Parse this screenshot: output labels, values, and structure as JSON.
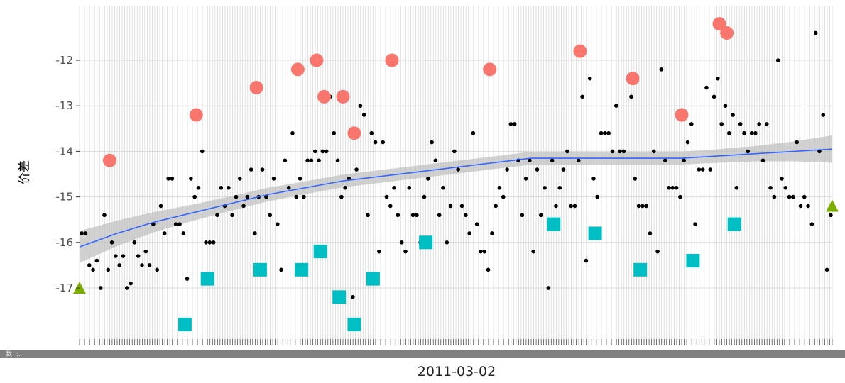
{
  "chart_data": {
    "type": "scatter",
    "title": "",
    "xlabel": "2011-03-02",
    "ylabel": "价差",
    "bottom_bar_text": "数: :.",
    "ylim": [
      -18.2,
      -10.9
    ],
    "y_ticks": [
      -12,
      -13,
      -14,
      -15,
      -16,
      -17
    ],
    "y_tick_labels": [
      "-12",
      "-13",
      "-14",
      "-15",
      "-16",
      "-17"
    ],
    "x_range": [
      0,
      100
    ],
    "grid": true,
    "legend": "none",
    "colors": {
      "panel": "#ffffff",
      "gridline": "#d9d9d9",
      "points": "#000000",
      "high": "#f8766d",
      "low": "#00bfc4",
      "edge": "#7cae00",
      "smooth": "#3366ff",
      "band": "#bdbdbd",
      "bar": "#808080"
    },
    "series": [
      {
        "kind": "small-points",
        "points": [
          [
            0.3,
            -15.8
          ],
          [
            0.8,
            -15.8
          ],
          [
            1.3,
            -16.5
          ],
          [
            1.8,
            -16.6
          ],
          [
            2.3,
            -16.4
          ],
          [
            2.8,
            -17.0
          ],
          [
            3.3,
            -15.4
          ],
          [
            3.8,
            -16.6
          ],
          [
            4.3,
            -16.0
          ],
          [
            4.8,
            -16.3
          ],
          [
            5.3,
            -16.5
          ],
          [
            5.8,
            -16.3
          ],
          [
            6.3,
            -17.0
          ],
          [
            6.8,
            -16.9
          ],
          [
            7.3,
            -16.0
          ],
          [
            7.8,
            -16.3
          ],
          [
            8.3,
            -16.5
          ],
          [
            8.8,
            -16.2
          ],
          [
            9.3,
            -16.5
          ],
          [
            9.8,
            -15.6
          ],
          [
            10.3,
            -16.6
          ],
          [
            10.8,
            -15.2
          ],
          [
            11.3,
            -15.8
          ],
          [
            11.8,
            -14.6
          ],
          [
            12.3,
            -14.6
          ],
          [
            12.8,
            -15.6
          ],
          [
            13.3,
            -15.6
          ],
          [
            13.8,
            -15.8
          ],
          [
            14.3,
            -16.8
          ],
          [
            14.8,
            -14.6
          ],
          [
            15.3,
            -15.0
          ],
          [
            15.8,
            -14.8
          ],
          [
            16.3,
            -14.0
          ],
          [
            16.8,
            -16.0
          ],
          [
            17.3,
            -16.0
          ],
          [
            17.8,
            -16.0
          ],
          [
            18.3,
            -15.4
          ],
          [
            18.8,
            -14.8
          ],
          [
            19.3,
            -15.2
          ],
          [
            19.8,
            -14.8
          ],
          [
            20.3,
            -15.4
          ],
          [
            20.8,
            -15.0
          ],
          [
            21.3,
            -14.6
          ],
          [
            21.8,
            -15.2
          ],
          [
            22.3,
            -15.0
          ],
          [
            22.8,
            -14.4
          ],
          [
            23.3,
            -15.8
          ],
          [
            23.8,
            -15.0
          ],
          [
            24.3,
            -14.4
          ],
          [
            24.8,
            -15.0
          ],
          [
            25.3,
            -15.4
          ],
          [
            25.8,
            -14.6
          ],
          [
            26.3,
            -15.6
          ],
          [
            26.8,
            -16.6
          ],
          [
            27.3,
            -14.2
          ],
          [
            27.8,
            -14.8
          ],
          [
            28.3,
            -13.6
          ],
          [
            28.8,
            -15.0
          ],
          [
            29.3,
            -14.6
          ],
          [
            29.8,
            -15.0
          ],
          [
            30.3,
            -14.2
          ],
          [
            30.8,
            -14.2
          ],
          [
            31.3,
            -14.0
          ],
          [
            31.8,
            -14.2
          ],
          [
            32.3,
            -14.0
          ],
          [
            32.8,
            -14.0
          ],
          [
            33.3,
            -12.8
          ],
          [
            33.8,
            -13.6
          ],
          [
            34.3,
            -14.2
          ],
          [
            34.8,
            -15.0
          ],
          [
            35.3,
            -14.8
          ],
          [
            35.8,
            -14.6
          ],
          [
            36.3,
            -17.2
          ],
          [
            36.8,
            -14.4
          ],
          [
            37.3,
            -13.0
          ],
          [
            37.8,
            -13.2
          ],
          [
            38.3,
            -15.4
          ],
          [
            38.8,
            -13.6
          ],
          [
            39.3,
            -13.8
          ],
          [
            39.8,
            -16.2
          ],
          [
            40.3,
            -13.8
          ],
          [
            40.8,
            -15.0
          ],
          [
            41.3,
            -15.2
          ],
          [
            41.8,
            -14.8
          ],
          [
            42.3,
            -15.4
          ],
          [
            42.8,
            -16.0
          ],
          [
            43.3,
            -16.2
          ],
          [
            43.8,
            -14.8
          ],
          [
            44.3,
            -15.4
          ],
          [
            44.8,
            -15.4
          ],
          [
            45.3,
            -16.0
          ],
          [
            45.8,
            -15.0
          ],
          [
            46.3,
            -14.6
          ],
          [
            46.8,
            -13.8
          ],
          [
            47.3,
            -14.2
          ],
          [
            47.8,
            -15.4
          ],
          [
            48.3,
            -14.8
          ],
          [
            48.8,
            -16.0
          ],
          [
            49.3,
            -15.2
          ],
          [
            49.8,
            -14.0
          ],
          [
            50.3,
            -14.4
          ],
          [
            50.8,
            -15.2
          ],
          [
            51.3,
            -15.4
          ],
          [
            51.8,
            -15.8
          ],
          [
            52.3,
            -13.6
          ],
          [
            52.8,
            -15.6
          ],
          [
            53.3,
            -16.2
          ],
          [
            53.8,
            -16.2
          ],
          [
            54.3,
            -16.6
          ],
          [
            54.8,
            -15.8
          ],
          [
            55.3,
            -15.2
          ],
          [
            55.8,
            -14.8
          ],
          [
            56.3,
            -15.0
          ],
          [
            56.8,
            -14.4
          ],
          [
            57.3,
            -13.4
          ],
          [
            57.8,
            -13.4
          ],
          [
            58.3,
            -14.2
          ],
          [
            58.8,
            -15.4
          ],
          [
            59.3,
            -14.6
          ],
          [
            59.8,
            -14.2
          ],
          [
            60.3,
            -16.2
          ],
          [
            60.8,
            -14.4
          ],
          [
            61.3,
            -15.4
          ],
          [
            61.8,
            -14.8
          ],
          [
            62.3,
            -17.0
          ],
          [
            62.8,
            -14.2
          ],
          [
            63.3,
            -15.2
          ],
          [
            63.8,
            -14.8
          ],
          [
            64.3,
            -14.4
          ],
          [
            64.8,
            -14.0
          ],
          [
            65.3,
            -15.2
          ],
          [
            65.8,
            -15.2
          ],
          [
            66.3,
            -14.2
          ],
          [
            66.8,
            -12.8
          ],
          [
            67.3,
            -16.4
          ],
          [
            67.8,
            -12.4
          ],
          [
            68.3,
            -14.6
          ],
          [
            68.8,
            -15.0
          ],
          [
            69.3,
            -13.6
          ],
          [
            69.8,
            -13.6
          ],
          [
            70.3,
            -13.6
          ],
          [
            70.8,
            -14.0
          ],
          [
            71.3,
            -13.0
          ],
          [
            71.8,
            -14.0
          ],
          [
            72.3,
            -14.0
          ],
          [
            72.8,
            -12.4
          ],
          [
            73.3,
            -12.8
          ],
          [
            73.8,
            -14.6
          ],
          [
            74.3,
            -15.2
          ],
          [
            74.8,
            -15.2
          ],
          [
            75.3,
            -15.2
          ],
          [
            75.8,
            -15.8
          ],
          [
            76.3,
            -14.0
          ],
          [
            76.8,
            -16.2
          ],
          [
            77.3,
            -12.2
          ],
          [
            77.8,
            -14.2
          ],
          [
            78.3,
            -14.8
          ],
          [
            78.8,
            -14.8
          ],
          [
            79.3,
            -14.8
          ],
          [
            79.8,
            -15.0
          ],
          [
            80.3,
            -14.2
          ],
          [
            80.8,
            -13.8
          ],
          [
            81.3,
            -13.4
          ],
          [
            81.8,
            -15.6
          ],
          [
            82.3,
            -14.4
          ],
          [
            82.8,
            -14.4
          ],
          [
            83.3,
            -12.6
          ],
          [
            83.8,
            -14.4
          ],
          [
            84.3,
            -12.8
          ],
          [
            84.8,
            -12.4
          ],
          [
            85.3,
            -13.4
          ],
          [
            85.8,
            -13.0
          ],
          [
            86.3,
            -13.6
          ],
          [
            86.8,
            -13.2
          ],
          [
            87.3,
            -14.8
          ],
          [
            87.8,
            -13.4
          ],
          [
            88.3,
            -13.6
          ],
          [
            88.8,
            -14.0
          ],
          [
            89.3,
            -13.6
          ],
          [
            89.8,
            -13.6
          ],
          [
            90.3,
            -13.4
          ],
          [
            90.8,
            -14.2
          ],
          [
            91.3,
            -13.4
          ],
          [
            91.8,
            -14.8
          ],
          [
            92.3,
            -15.0
          ],
          [
            92.8,
            -12.0
          ],
          [
            93.3,
            -14.6
          ],
          [
            93.8,
            -14.8
          ],
          [
            94.3,
            -15.0
          ],
          [
            94.8,
            -15.0
          ],
          [
            95.3,
            -13.8
          ],
          [
            95.8,
            -15.2
          ],
          [
            96.3,
            -15.0
          ],
          [
            96.8,
            -15.2
          ],
          [
            97.3,
            -15.6
          ],
          [
            97.8,
            -11.4
          ],
          [
            98.3,
            -14.0
          ],
          [
            98.8,
            -13.2
          ],
          [
            99.3,
            -16.6
          ],
          [
            99.8,
            -15.4
          ]
        ]
      },
      {
        "kind": "high-circles",
        "points": [
          [
            4,
            -14.2
          ],
          [
            15.5,
            -13.2
          ],
          [
            23.5,
            -12.6
          ],
          [
            29,
            -12.2
          ],
          [
            31.5,
            -12.0
          ],
          [
            32.5,
            -12.8
          ],
          [
            35,
            -12.8
          ],
          [
            36.5,
            -13.6
          ],
          [
            41.5,
            -12.0
          ],
          [
            54.5,
            -12.2
          ],
          [
            66.5,
            -11.8
          ],
          [
            73.5,
            -12.4
          ],
          [
            80,
            -13.2
          ],
          [
            85,
            -11.2
          ],
          [
            86,
            -11.4
          ]
        ]
      },
      {
        "kind": "low-squares",
        "points": [
          [
            14,
            -17.8
          ],
          [
            17,
            -16.8
          ],
          [
            24,
            -16.6
          ],
          [
            29.5,
            -16.6
          ],
          [
            32,
            -16.2
          ],
          [
            34.5,
            -17.2
          ],
          [
            36.5,
            -17.8
          ],
          [
            39,
            -16.8
          ],
          [
            46,
            -16.0
          ],
          [
            63,
            -15.6
          ],
          [
            68.5,
            -15.8
          ],
          [
            74.5,
            -16.6
          ],
          [
            81.5,
            -16.4
          ],
          [
            87,
            -15.6
          ]
        ]
      },
      {
        "kind": "edge-triangles",
        "points": [
          [
            0,
            -17.0
          ],
          [
            100,
            -15.2
          ]
        ]
      }
    ],
    "smooth": {
      "x": [
        0,
        5,
        10,
        15,
        20,
        25,
        30,
        35,
        40,
        45,
        50,
        55,
        60,
        65,
        70,
        75,
        80,
        85,
        90,
        95,
        100
      ],
      "y": [
        -16.1,
        -15.8,
        -15.55,
        -15.35,
        -15.15,
        -14.95,
        -14.8,
        -14.65,
        -14.55,
        -14.45,
        -14.35,
        -14.25,
        -14.15,
        -14.15,
        -14.15,
        -14.15,
        -14.15,
        -14.1,
        -14.05,
        -14.0,
        -13.95
      ],
      "se": [
        0.35,
        0.28,
        0.22,
        0.18,
        0.16,
        0.15,
        0.14,
        0.14,
        0.14,
        0.14,
        0.14,
        0.14,
        0.14,
        0.14,
        0.14,
        0.14,
        0.14,
        0.15,
        0.17,
        0.22,
        0.3
      ]
    }
  }
}
